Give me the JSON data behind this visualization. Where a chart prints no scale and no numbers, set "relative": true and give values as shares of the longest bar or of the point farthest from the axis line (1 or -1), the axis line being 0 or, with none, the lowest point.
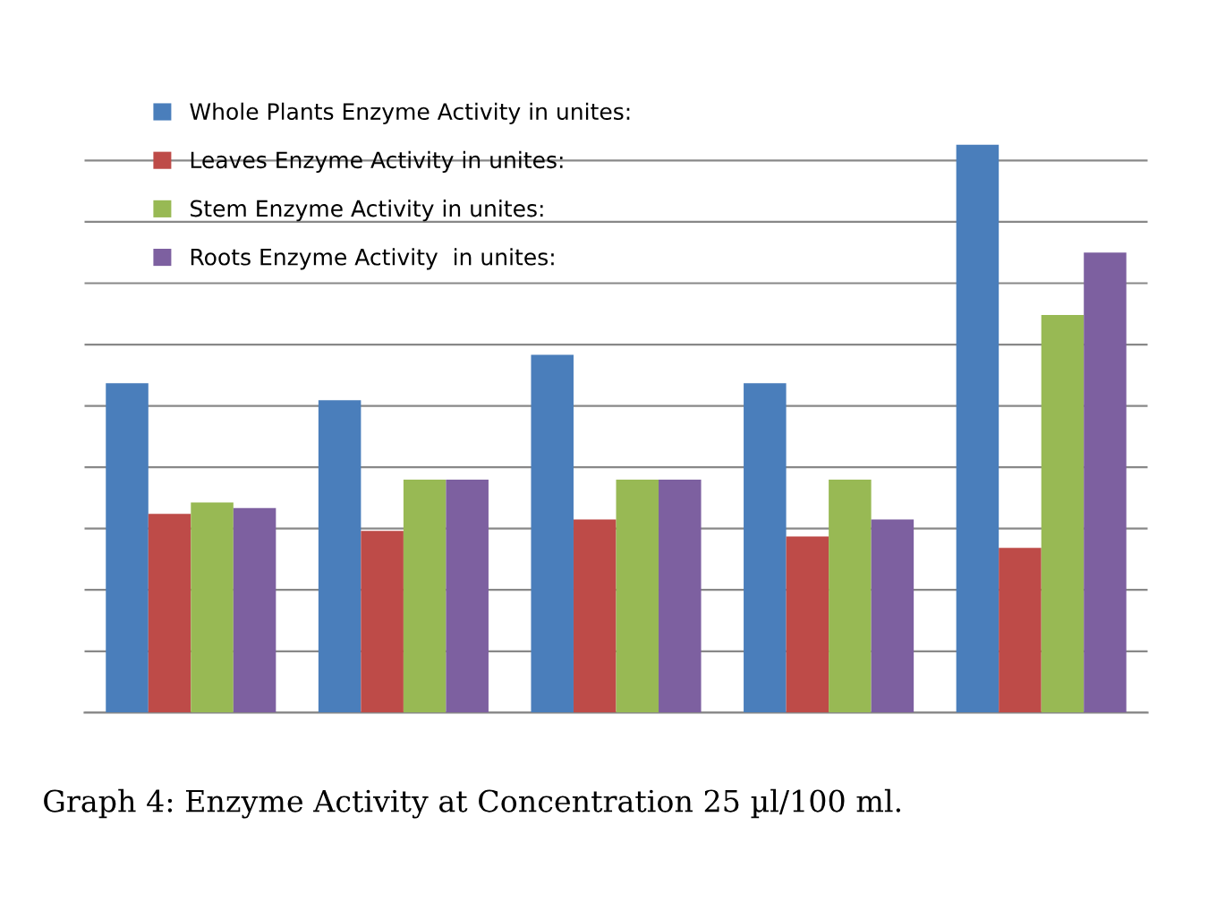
{
  "chart_data": {
    "type": "bar",
    "relative": true,
    "categories": [
      null,
      null,
      null,
      null,
      null
    ],
    "series": [
      {
        "name": "Whole Plants Enzyme Activity in unites:",
        "color": "#4a7ebb",
        "values": [
          0.58,
          0.55,
          0.63,
          0.58,
          1
        ]
      },
      {
        "name": "Leaves Enzyme Activity in unites:",
        "color": "#be4b48",
        "values": [
          0.35,
          0.32,
          0.34,
          0.31,
          0.29
        ]
      },
      {
        "name": "Stem Enzyme Activity in unites:",
        "color": "#98b954",
        "values": [
          0.37,
          0.41,
          0.41,
          0.41,
          0.7
        ]
      },
      {
        "name": "Roots Enzyme Activity  in unites:",
        "color": "#7d60a0",
        "values": [
          0.36,
          0.41,
          0.41,
          0.34,
          0.81
        ]
      }
    ],
    "grid": "y",
    "legend": "top left",
    "annotations": [
      "Graph 4: Enzyme Activity at Concentration 25 µl/100 ml."
    ]
  }
}
